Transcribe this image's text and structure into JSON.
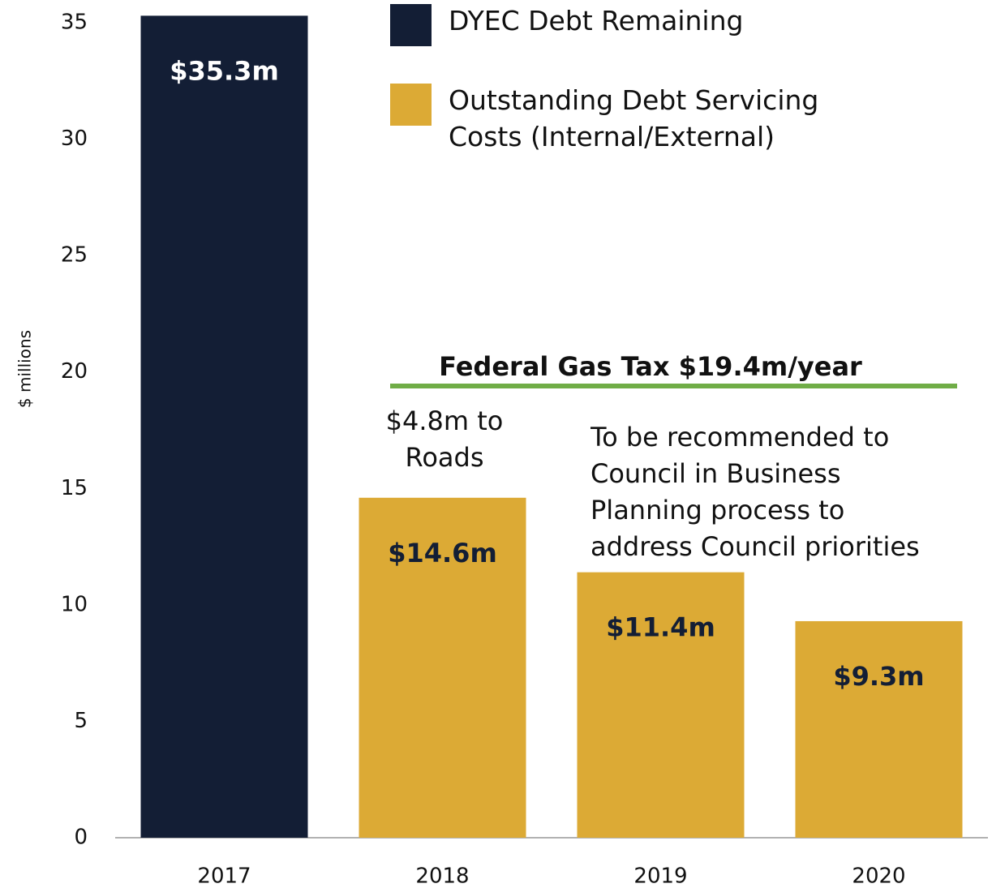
{
  "chart_data": {
    "type": "bar",
    "y_axis_label": "$ millions",
    "categories": [
      "2017",
      "2018",
      "2019",
      "2020"
    ],
    "series": [
      {
        "name": "DYEC Debt Remaining",
        "color": "#131e35",
        "label_color": "#ffffff",
        "values": [
          35.3,
          null,
          null,
          null
        ],
        "value_labels": [
          "$35.3m",
          null,
          null,
          null
        ]
      },
      {
        "name": "Outstanding Debt Servicing Costs (Internal/External)",
        "color": "#dcaa35",
        "label_color": "#131e35",
        "values": [
          null,
          14.6,
          11.4,
          9.3
        ],
        "value_labels": [
          null,
          "$14.6m",
          "$11.4m",
          "$9.3m"
        ]
      }
    ],
    "ylim": [
      0,
      35.3
    ],
    "yticks": [
      0,
      5,
      10,
      15,
      20,
      25,
      30,
      35
    ],
    "grid": false,
    "reference_line": {
      "value": 19.4,
      "label": "Federal Gas Tax $19.4m/year",
      "color": "#70ad47"
    },
    "annotations": [
      "$4.8m to Roads",
      "To be recommended to Council in Business Planning process to address Council priorities"
    ]
  }
}
